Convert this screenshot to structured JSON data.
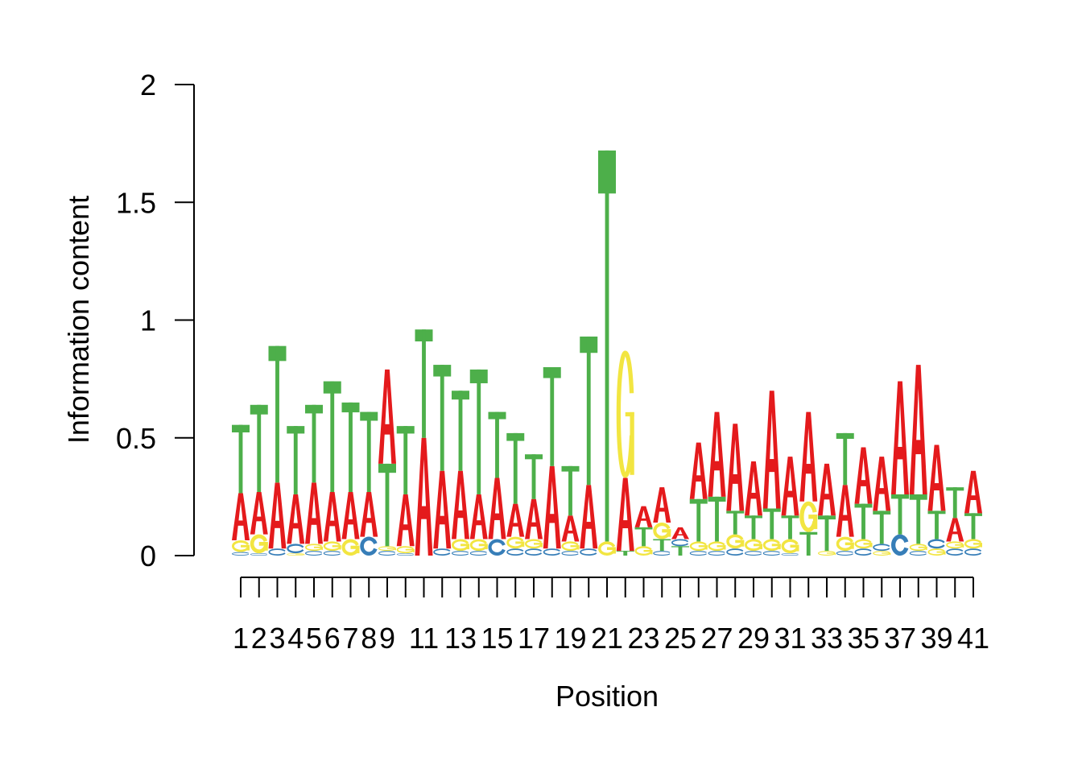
{
  "chart_data": {
    "type": "sequence-logo",
    "ylabel": "Information content",
    "xlabel": "Position",
    "ylim": [
      0,
      2
    ],
    "yticks": [
      "0",
      "0.5",
      "1",
      "1.5",
      "2"
    ],
    "x_tick_labels": [
      "1",
      "2",
      "3",
      "4",
      "5",
      "6",
      "7",
      "8",
      "9",
      "11",
      "13",
      "15",
      "17",
      "19",
      "21",
      "23",
      "25",
      "27",
      "29",
      "31",
      "33",
      "35",
      "37",
      "39",
      "41"
    ],
    "x_labeled_positions": [
      1,
      2,
      3,
      4,
      5,
      6,
      7,
      8,
      9,
      11,
      13,
      15,
      17,
      19,
      21,
      23,
      25,
      27,
      29,
      31,
      33,
      35,
      37,
      39,
      41
    ],
    "colors": {
      "A": "#E41A1C",
      "C": "#377EB8",
      "G": "#F2E541",
      "T": "#4DAF4A"
    },
    "positions": [
      {
        "pos": 1,
        "letters": [
          [
            "C",
            0.015
          ],
          [
            "G",
            0.05
          ],
          [
            "A",
            0.2
          ],
          [
            "T",
            0.29
          ]
        ]
      },
      {
        "pos": 2,
        "letters": [
          [
            "C",
            0.01
          ],
          [
            "G",
            0.08
          ],
          [
            "A",
            0.18
          ],
          [
            "T",
            0.37
          ]
        ]
      },
      {
        "pos": 3,
        "letters": [
          [
            "C",
            0.03
          ],
          [
            "A",
            0.28
          ],
          [
            "T",
            0.58
          ]
        ]
      },
      {
        "pos": 4,
        "letters": [
          [
            "G",
            0.01
          ],
          [
            "C",
            0.04
          ],
          [
            "A",
            0.21
          ],
          [
            "T",
            0.29
          ]
        ]
      },
      {
        "pos": 5,
        "letters": [
          [
            "C",
            0.02
          ],
          [
            "G",
            0.03
          ],
          [
            "A",
            0.26
          ],
          [
            "T",
            0.33
          ]
        ]
      },
      {
        "pos": 6,
        "letters": [
          [
            "C",
            0.02
          ],
          [
            "G",
            0.04
          ],
          [
            "A",
            0.21
          ],
          [
            "T",
            0.47
          ]
        ]
      },
      {
        "pos": 7,
        "letters": [
          [
            "G",
            0.07
          ],
          [
            "A",
            0.2
          ],
          [
            "T",
            0.38
          ]
        ]
      },
      {
        "pos": 8,
        "letters": [
          [
            "C",
            0.08
          ],
          [
            "A",
            0.19
          ],
          [
            "T",
            0.34
          ]
        ]
      },
      {
        "pos": 9,
        "letters": [
          [
            "C",
            0.02
          ],
          [
            "G",
            0.02
          ],
          [
            "T",
            0.35
          ],
          [
            "A",
            0.4
          ]
        ]
      },
      {
        "pos": 10,
        "letters": [
          [
            "C",
            0.01
          ],
          [
            "G",
            0.03
          ],
          [
            "A",
            0.22
          ],
          [
            "T",
            0.29
          ]
        ]
      },
      {
        "pos": 11,
        "letters": [
          [
            "A",
            0.5
          ],
          [
            "T",
            0.46
          ]
        ]
      },
      {
        "pos": 12,
        "letters": [
          [
            "C",
            0.03
          ],
          [
            "A",
            0.33
          ],
          [
            "T",
            0.45
          ]
        ]
      },
      {
        "pos": 13,
        "letters": [
          [
            "C",
            0.02
          ],
          [
            "G",
            0.05
          ],
          [
            "A",
            0.29
          ],
          [
            "T",
            0.34
          ]
        ]
      },
      {
        "pos": 14,
        "letters": [
          [
            "C",
            0.02
          ],
          [
            "G",
            0.05
          ],
          [
            "A",
            0.19
          ],
          [
            "T",
            0.53
          ]
        ]
      },
      {
        "pos": 15,
        "letters": [
          [
            "C",
            0.07
          ],
          [
            "A",
            0.26
          ],
          [
            "T",
            0.28
          ]
        ]
      },
      {
        "pos": 16,
        "letters": [
          [
            "C",
            0.03
          ],
          [
            "G",
            0.05
          ],
          [
            "A",
            0.14
          ],
          [
            "T",
            0.3
          ]
        ]
      },
      {
        "pos": 17,
        "letters": [
          [
            "C",
            0.03
          ],
          [
            "G",
            0.04
          ],
          [
            "A",
            0.17
          ],
          [
            "T",
            0.19
          ]
        ]
      },
      {
        "pos": 18,
        "letters": [
          [
            "C",
            0.03
          ],
          [
            "A",
            0.35
          ],
          [
            "T",
            0.42
          ]
        ]
      },
      {
        "pos": 19,
        "letters": [
          [
            "C",
            0.02
          ],
          [
            "G",
            0.04
          ],
          [
            "A",
            0.11
          ],
          [
            "T",
            0.21
          ]
        ]
      },
      {
        "pos": 20,
        "letters": [
          [
            "C",
            0.03
          ],
          [
            "A",
            0.27
          ],
          [
            "T",
            0.63
          ]
        ]
      },
      {
        "pos": 21,
        "letters": [
          [
            "G",
            0.06
          ],
          [
            "T",
            1.66
          ]
        ]
      },
      {
        "pos": 22,
        "letters": [
          [
            "T",
            0.02
          ],
          [
            "A",
            0.31
          ],
          [
            "G",
            0.54
          ]
        ]
      },
      {
        "pos": 23,
        "letters": [
          [
            "G",
            0.04
          ],
          [
            "T",
            0.08
          ],
          [
            "A",
            0.09
          ]
        ]
      },
      {
        "pos": 24,
        "letters": [
          [
            "C",
            0.02
          ],
          [
            "T",
            0.05
          ],
          [
            "G",
            0.07
          ],
          [
            "A",
            0.15
          ]
        ]
      },
      {
        "pos": 25,
        "letters": [
          [
            "T",
            0.04
          ],
          [
            "C",
            0.03
          ],
          [
            "A",
            0.05
          ]
        ]
      },
      {
        "pos": 26,
        "letters": [
          [
            "C",
            0.02
          ],
          [
            "G",
            0.04
          ],
          [
            "T",
            0.18
          ],
          [
            "A",
            0.24
          ]
        ]
      },
      {
        "pos": 27,
        "letters": [
          [
            "C",
            0.02
          ],
          [
            "G",
            0.04
          ],
          [
            "T",
            0.19
          ],
          [
            "A",
            0.36
          ]
        ]
      },
      {
        "pos": 28,
        "letters": [
          [
            "C",
            0.03
          ],
          [
            "G",
            0.06
          ],
          [
            "T",
            0.1
          ],
          [
            "A",
            0.37
          ]
        ]
      },
      {
        "pos": 29,
        "letters": [
          [
            "C",
            0.02
          ],
          [
            "G",
            0.05
          ],
          [
            "T",
            0.1
          ],
          [
            "A",
            0.23
          ]
        ]
      },
      {
        "pos": 30,
        "letters": [
          [
            "C",
            0.02
          ],
          [
            "G",
            0.05
          ],
          [
            "T",
            0.13
          ],
          [
            "A",
            0.5
          ]
        ]
      },
      {
        "pos": 31,
        "letters": [
          [
            "C",
            0.01
          ],
          [
            "G",
            0.06
          ],
          [
            "T",
            0.1
          ],
          [
            "A",
            0.25
          ]
        ]
      },
      {
        "pos": 32,
        "letters": [
          [
            "T",
            0.1
          ],
          [
            "G",
            0.13
          ],
          [
            "A",
            0.38
          ]
        ]
      },
      {
        "pos": 33,
        "letters": [
          [
            "G",
            0.02
          ],
          [
            "T",
            0.15
          ],
          [
            "A",
            0.22
          ]
        ]
      },
      {
        "pos": 34,
        "letters": [
          [
            "C",
            0.02
          ],
          [
            "G",
            0.06
          ],
          [
            "A",
            0.22
          ],
          [
            "T",
            0.22
          ]
        ]
      },
      {
        "pos": 35,
        "letters": [
          [
            "C",
            0.03
          ],
          [
            "G",
            0.04
          ],
          [
            "T",
            0.15
          ],
          [
            "A",
            0.24
          ]
        ]
      },
      {
        "pos": 36,
        "letters": [
          [
            "G",
            0.02
          ],
          [
            "C",
            0.03
          ],
          [
            "T",
            0.14
          ],
          [
            "A",
            0.23
          ]
        ]
      },
      {
        "pos": 37,
        "letters": [
          [
            "C",
            0.09
          ],
          [
            "T",
            0.17
          ],
          [
            "A",
            0.48
          ]
        ]
      },
      {
        "pos": 38,
        "letters": [
          [
            "C",
            0.02
          ],
          [
            "G",
            0.03
          ],
          [
            "T",
            0.21
          ],
          [
            "A",
            0.55
          ]
        ]
      },
      {
        "pos": 39,
        "letters": [
          [
            "G",
            0.03
          ],
          [
            "C",
            0.04
          ],
          [
            "T",
            0.12
          ],
          [
            "A",
            0.28
          ]
        ]
      },
      {
        "pos": 40,
        "letters": [
          [
            "C",
            0.03
          ],
          [
            "G",
            0.03
          ],
          [
            "A",
            0.1
          ],
          [
            "T",
            0.13
          ]
        ]
      },
      {
        "pos": 41,
        "letters": [
          [
            "C",
            0.03
          ],
          [
            "G",
            0.04
          ],
          [
            "T",
            0.11
          ],
          [
            "A",
            0.18
          ]
        ]
      }
    ]
  }
}
